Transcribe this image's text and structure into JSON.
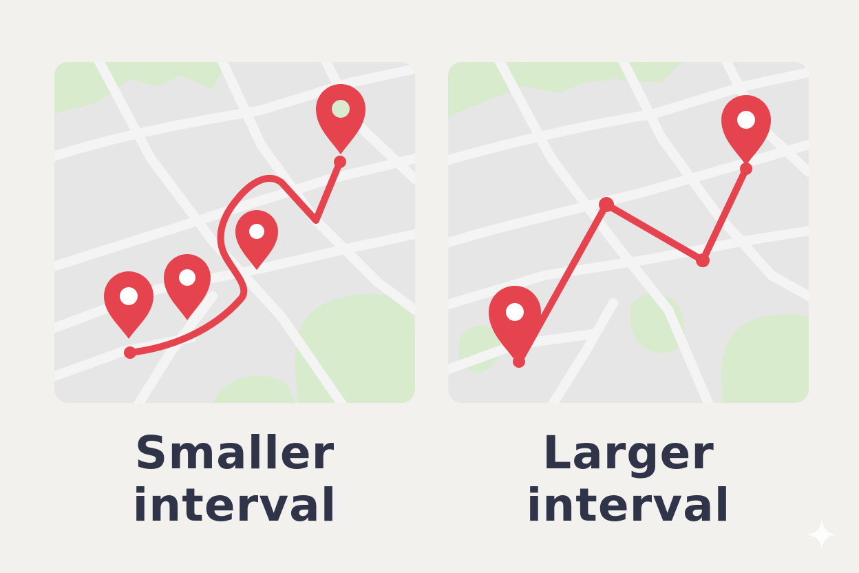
{
  "panels": [
    {
      "id": "smaller",
      "caption_line1": "Smaller",
      "caption_line2": "interval"
    },
    {
      "id": "larger",
      "caption_line1": "Larger",
      "caption_line2": "interval"
    }
  ],
  "colors": {
    "background": "#f3f1ee",
    "map_base": "#e6e6e6",
    "road": "#f4f4f4",
    "park": "#d8ebcc",
    "route": "#e5434d",
    "text": "#2f3448"
  },
  "icons": [
    "map-pin-icon",
    "sparkle-icon"
  ]
}
